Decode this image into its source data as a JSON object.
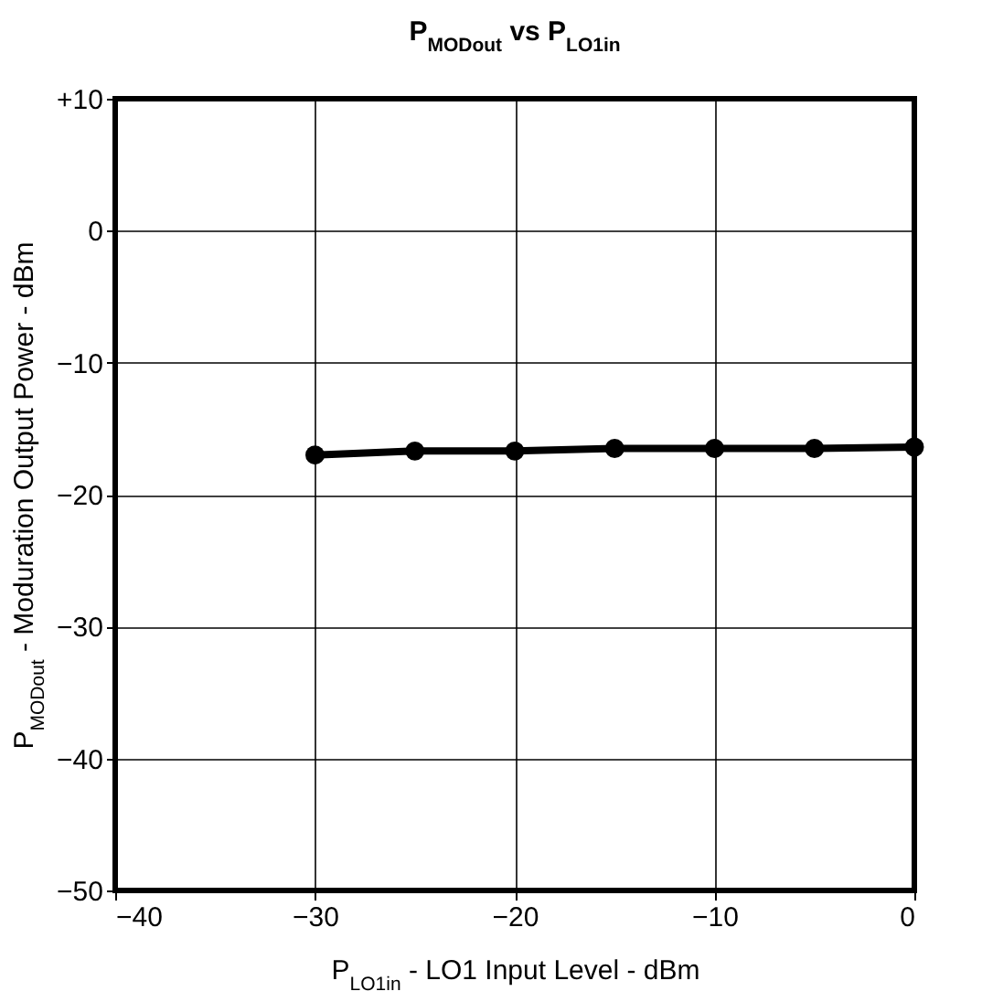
{
  "chart_data": {
    "type": "line",
    "title": "P$_{MODout}$ vs P$_{LO1in}$",
    "xlabel": "P$_{LO1in}$ - LO1 Input Level - dBm",
    "ylabel": "P$_{MODout}$ - Moduration Output Power - dBm",
    "x": [
      -30,
      -25,
      -20,
      -15,
      -10,
      -5,
      0
    ],
    "series": [
      {
        "color": "#000000",
        "values": [
          -17.0,
          -16.7,
          -16.7,
          -16.5,
          -16.5,
          -16.5,
          -16.4
        ]
      }
    ],
    "xlim": [
      -40,
      0
    ],
    "xticks": [
      {
        "value": -40,
        "label": "−40"
      },
      {
        "value": -30,
        "label": "−30"
      },
      {
        "value": -20,
        "label": "−20"
      },
      {
        "value": -10,
        "label": "−10"
      },
      0
    ],
    "ylim": [
      -50,
      10
    ],
    "yticks": [
      {
        "value": -50,
        "label": "−50"
      },
      {
        "value": -40,
        "label": "−40"
      },
      {
        "value": -30,
        "label": "−30"
      },
      {
        "value": -20,
        "label": "−20"
      },
      {
        "value": -10,
        "label": "−10"
      },
      0,
      {
        "value": 10,
        "label": "+10"
      }
    ],
    "grid": true,
    "marker": "circle",
    "line_style": "solid"
  }
}
